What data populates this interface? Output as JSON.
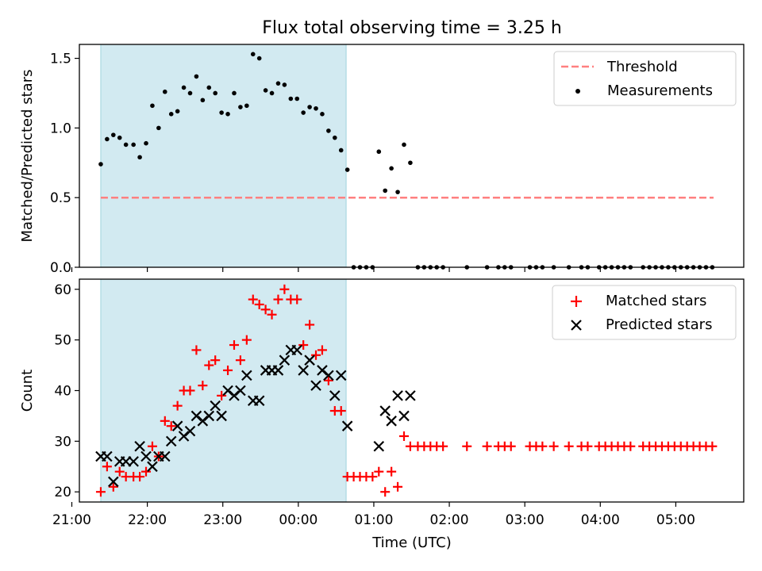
{
  "figure": {
    "title": "Flux total observing time = 3.25 h",
    "xlabel": "Time (UTC)"
  },
  "chart_data": [
    {
      "type": "scatter",
      "ylabel": "Matched/Predicted stars",
      "ylim": [
        0,
        1.6
      ],
      "yticks": [
        0.0,
        0.5,
        1.0,
        1.5
      ],
      "ytick_labels": [
        "0.0",
        "0.5",
        "1.0",
        "1.5"
      ],
      "xlim": [
        "21:06",
        "05:54"
      ],
      "shaded_span": [
        "21:23",
        "00:38"
      ],
      "shaded_color": "#add8e6",
      "legend_position": "top-right",
      "threshold": {
        "name": "Threshold",
        "value": 0.5,
        "x_range": [
          "21:23",
          "05:30"
        ],
        "color": "#ff8080"
      },
      "series": [
        {
          "name": "Measurements",
          "color": "#000000",
          "marker": "dot",
          "points": [
            [
              "21:23",
              0.74
            ],
            [
              "21:28",
              0.92
            ],
            [
              "21:33",
              0.95
            ],
            [
              "21:38",
              0.93
            ],
            [
              "21:43",
              0.88
            ],
            [
              "21:49",
              0.88
            ],
            [
              "21:54",
              0.79
            ],
            [
              "21:59",
              0.89
            ],
            [
              "22:04",
              1.16
            ],
            [
              "22:09",
              1.0
            ],
            [
              "22:14",
              1.26
            ],
            [
              "22:19",
              1.1
            ],
            [
              "22:24",
              1.12
            ],
            [
              "22:29",
              1.29
            ],
            [
              "22:34",
              1.25
            ],
            [
              "22:39",
              1.37
            ],
            [
              "22:44",
              1.2
            ],
            [
              "22:49",
              1.29
            ],
            [
              "22:54",
              1.25
            ],
            [
              "22:59",
              1.11
            ],
            [
              "23:04",
              1.1
            ],
            [
              "23:09",
              1.25
            ],
            [
              "23:14",
              1.15
            ],
            [
              "23:19",
              1.16
            ],
            [
              "23:24",
              1.53
            ],
            [
              "23:29",
              1.5
            ],
            [
              "23:34",
              1.27
            ],
            [
              "23:39",
              1.25
            ],
            [
              "23:44",
              1.32
            ],
            [
              "23:49",
              1.31
            ],
            [
              "23:54",
              1.21
            ],
            [
              "23:59",
              1.21
            ],
            [
              "00:04",
              1.11
            ],
            [
              "00:09",
              1.15
            ],
            [
              "00:14",
              1.14
            ],
            [
              "00:19",
              1.1
            ],
            [
              "00:24",
              0.98
            ],
            [
              "00:29",
              0.93
            ],
            [
              "00:34",
              0.84
            ],
            [
              "00:39",
              0.7
            ],
            [
              "00:44",
              0.0
            ],
            [
              "00:49",
              0.0
            ],
            [
              "00:54",
              0.0
            ],
            [
              "00:59",
              0.0
            ],
            [
              "01:04",
              0.83
            ],
            [
              "01:09",
              0.55
            ],
            [
              "01:14",
              0.71
            ],
            [
              "01:19",
              0.54
            ],
            [
              "01:24",
              0.88
            ],
            [
              "01:29",
              0.75
            ],
            [
              "01:35",
              0.0
            ],
            [
              "01:40",
              0.0
            ],
            [
              "01:45",
              0.0
            ],
            [
              "01:50",
              0.0
            ],
            [
              "01:55",
              0.0
            ],
            [
              "02:14",
              0.0
            ],
            [
              "02:30",
              0.0
            ],
            [
              "02:39",
              0.0
            ],
            [
              "02:44",
              0.0
            ],
            [
              "02:49",
              0.0
            ],
            [
              "03:04",
              0.0
            ],
            [
              "03:09",
              0.0
            ],
            [
              "03:14",
              0.0
            ],
            [
              "03:23",
              0.0
            ],
            [
              "03:35",
              0.0
            ],
            [
              "03:45",
              0.0
            ],
            [
              "03:50",
              0.0
            ],
            [
              "03:59",
              0.0
            ],
            [
              "04:04",
              0.0
            ],
            [
              "04:09",
              0.0
            ],
            [
              "04:14",
              0.0
            ],
            [
              "04:19",
              0.0
            ],
            [
              "04:24",
              0.0
            ],
            [
              "04:34",
              0.0
            ],
            [
              "04:39",
              0.0
            ],
            [
              "04:44",
              0.0
            ],
            [
              "04:49",
              0.0
            ],
            [
              "04:54",
              0.0
            ],
            [
              "04:59",
              0.0
            ],
            [
              "05:04",
              0.0
            ],
            [
              "05:09",
              0.0
            ],
            [
              "05:14",
              0.0
            ],
            [
              "05:19",
              0.0
            ],
            [
              "05:24",
              0.0
            ],
            [
              "05:29",
              0.0
            ]
          ]
        }
      ]
    },
    {
      "type": "scatter",
      "ylabel": "Count",
      "ylim": [
        18,
        62
      ],
      "yticks": [
        20,
        30,
        40,
        50,
        60
      ],
      "ytick_labels": [
        "20",
        "30",
        "40",
        "50",
        "60"
      ],
      "xlim": [
        "21:06",
        "05:54"
      ],
      "xticks": [
        "21:00",
        "22:00",
        "23:00",
        "00:00",
        "01:00",
        "02:00",
        "03:00",
        "04:00",
        "05:00"
      ],
      "xtick_labels": [
        "21:00",
        "22:00",
        "23:00",
        "00:00",
        "01:00",
        "02:00",
        "03:00",
        "04:00",
        "05:00"
      ],
      "shaded_span": [
        "21:23",
        "00:38"
      ],
      "shaded_color": "#add8e6",
      "legend_position": "top-right",
      "series": [
        {
          "name": "Matched stars",
          "color": "#ff0000",
          "marker": "plus",
          "points": [
            [
              "21:23",
              20
            ],
            [
              "21:28",
              25
            ],
            [
              "21:33",
              21
            ],
            [
              "21:38",
              24
            ],
            [
              "21:43",
              23
            ],
            [
              "21:49",
              23
            ],
            [
              "21:54",
              23
            ],
            [
              "21:59",
              24
            ],
            [
              "22:04",
              29
            ],
            [
              "22:09",
              27
            ],
            [
              "22:14",
              34
            ],
            [
              "22:19",
              33
            ],
            [
              "22:24",
              37
            ],
            [
              "22:29",
              40
            ],
            [
              "22:34",
              40
            ],
            [
              "22:39",
              48
            ],
            [
              "22:44",
              41
            ],
            [
              "22:49",
              45
            ],
            [
              "22:54",
              46
            ],
            [
              "22:59",
              39
            ],
            [
              "23:04",
              44
            ],
            [
              "23:09",
              49
            ],
            [
              "23:14",
              46
            ],
            [
              "23:19",
              50
            ],
            [
              "23:24",
              58
            ],
            [
              "23:29",
              57
            ],
            [
              "23:34",
              56
            ],
            [
              "23:39",
              55
            ],
            [
              "23:44",
              58
            ],
            [
              "23:49",
              60
            ],
            [
              "23:54",
              58
            ],
            [
              "23:59",
              58
            ],
            [
              "00:04",
              49
            ],
            [
              "00:09",
              53
            ],
            [
              "00:14",
              47
            ],
            [
              "00:19",
              48
            ],
            [
              "00:24",
              42
            ],
            [
              "00:29",
              36
            ],
            [
              "00:34",
              36
            ],
            [
              "00:39",
              23
            ],
            [
              "00:44",
              23
            ],
            [
              "00:49",
              23
            ],
            [
              "00:54",
              23
            ],
            [
              "00:59",
              23
            ],
            [
              "01:04",
              24
            ],
            [
              "01:09",
              20
            ],
            [
              "01:14",
              24
            ],
            [
              "01:19",
              21
            ],
            [
              "01:24",
              31
            ],
            [
              "01:29",
              29
            ],
            [
              "01:35",
              29
            ],
            [
              "01:40",
              29
            ],
            [
              "01:45",
              29
            ],
            [
              "01:50",
              29
            ],
            [
              "01:55",
              29
            ],
            [
              "02:14",
              29
            ],
            [
              "02:30",
              29
            ],
            [
              "02:39",
              29
            ],
            [
              "02:44",
              29
            ],
            [
              "02:49",
              29
            ],
            [
              "03:04",
              29
            ],
            [
              "03:09",
              29
            ],
            [
              "03:14",
              29
            ],
            [
              "03:23",
              29
            ],
            [
              "03:35",
              29
            ],
            [
              "03:45",
              29
            ],
            [
              "03:50",
              29
            ],
            [
              "03:59",
              29
            ],
            [
              "04:04",
              29
            ],
            [
              "04:09",
              29
            ],
            [
              "04:14",
              29
            ],
            [
              "04:19",
              29
            ],
            [
              "04:24",
              29
            ],
            [
              "04:34",
              29
            ],
            [
              "04:39",
              29
            ],
            [
              "04:44",
              29
            ],
            [
              "04:49",
              29
            ],
            [
              "04:54",
              29
            ],
            [
              "04:59",
              29
            ],
            [
              "05:04",
              29
            ],
            [
              "05:09",
              29
            ],
            [
              "05:14",
              29
            ],
            [
              "05:19",
              29
            ],
            [
              "05:24",
              29
            ],
            [
              "05:29",
              29
            ]
          ]
        },
        {
          "name": "Predicted stars",
          "color": "#000000",
          "marker": "x",
          "points": [
            [
              "21:23",
              27
            ],
            [
              "21:28",
              27
            ],
            [
              "21:33",
              22
            ],
            [
              "21:38",
              26
            ],
            [
              "21:43",
              26
            ],
            [
              "21:49",
              26
            ],
            [
              "21:54",
              29
            ],
            [
              "21:59",
              27
            ],
            [
              "22:04",
              25
            ],
            [
              "22:09",
              27
            ],
            [
              "22:14",
              27
            ],
            [
              "22:19",
              30
            ],
            [
              "22:24",
              33
            ],
            [
              "22:29",
              31
            ],
            [
              "22:34",
              32
            ],
            [
              "22:39",
              35
            ],
            [
              "22:44",
              34
            ],
            [
              "22:49",
              35
            ],
            [
              "22:54",
              37
            ],
            [
              "22:59",
              35
            ],
            [
              "23:04",
              40
            ],
            [
              "23:09",
              39
            ],
            [
              "23:14",
              40
            ],
            [
              "23:19",
              43
            ],
            [
              "23:24",
              38
            ],
            [
              "23:29",
              38
            ],
            [
              "23:34",
              44
            ],
            [
              "23:39",
              44
            ],
            [
              "23:44",
              44
            ],
            [
              "23:49",
              46
            ],
            [
              "23:54",
              48
            ],
            [
              "23:59",
              48
            ],
            [
              "00:04",
              44
            ],
            [
              "00:09",
              46
            ],
            [
              "00:14",
              41
            ],
            [
              "00:19",
              44
            ],
            [
              "00:24",
              43
            ],
            [
              "00:29",
              39
            ],
            [
              "00:34",
              43
            ],
            [
              "00:39",
              33
            ],
            [
              "01:04",
              29
            ],
            [
              "01:09",
              36
            ],
            [
              "01:14",
              34
            ],
            [
              "01:19",
              39
            ],
            [
              "01:24",
              35
            ],
            [
              "01:29",
              39
            ]
          ]
        }
      ]
    }
  ]
}
